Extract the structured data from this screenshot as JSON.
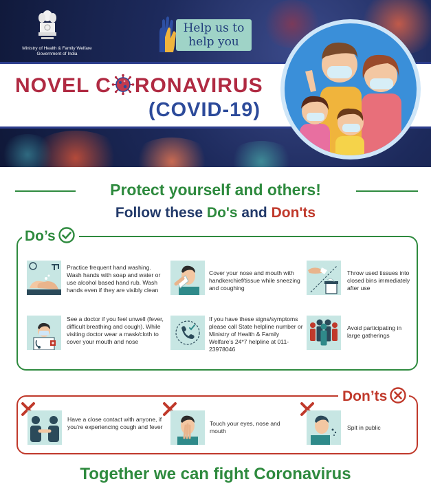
{
  "header": {
    "ministry_line1": "Ministry of Health & Family Welfare",
    "ministry_line2": "Government of India",
    "help_line1": "Help us to",
    "help_line2": "help you",
    "title_novel_part1": "NOVEL C",
    "title_novel_part2": "RONAVIRUS",
    "title_covid": "(COVID-19)"
  },
  "headings": {
    "protect": "Protect yourself and others!",
    "follow_prefix": "Follow these ",
    "follow_dos": "Do's",
    "follow_and": " and ",
    "follow_donts": "Don'ts"
  },
  "dos": {
    "label": "Do’s",
    "items": [
      {
        "icon": "hand-washing-icon",
        "text": "Practice frequent hand washing. Wash hands with soap and water or use alcohol based hand rub. Wash hands even if they are visibly clean"
      },
      {
        "icon": "cover-cough-icon",
        "text": "Cover your nose and mouth with handkerchief/tissue while sneezing and coughing"
      },
      {
        "icon": "tissue-bin-icon",
        "text": "Throw used tissues into closed bins immediately after use"
      },
      {
        "icon": "doctor-icon",
        "text": "See a doctor if you feel unwell (fever, difficult breathing and cough). While visiting doctor wear a mask/cloth to cover your mouth and nose"
      },
      {
        "icon": "phone-helpline-icon",
        "text": "If you have these signs/symptoms please call State helpline number or Ministry of Health & Family Welfare’s 24*7 helpline at 011-23978046"
      },
      {
        "icon": "crowd-icon",
        "text": "Avoid participating in large gatherings"
      }
    ]
  },
  "donts": {
    "label": "Don’ts",
    "items": [
      {
        "icon": "handshake-icon",
        "text": "Have a close contact with anyone, if you’re experiencing cough and fever"
      },
      {
        "icon": "touch-face-icon",
        "text": "Touch your eyes, nose and mouth"
      },
      {
        "icon": "spit-icon",
        "text": "Spit in public"
      }
    ]
  },
  "footer": {
    "slogan": "Together we can fight Coronavirus"
  },
  "colors": {
    "green": "#2e8a3e",
    "red": "#c0392b",
    "navy": "#233a6a",
    "title_red": "#b02a42",
    "title_blue": "#2c4a9a",
    "tile": "#c7e6e3"
  }
}
